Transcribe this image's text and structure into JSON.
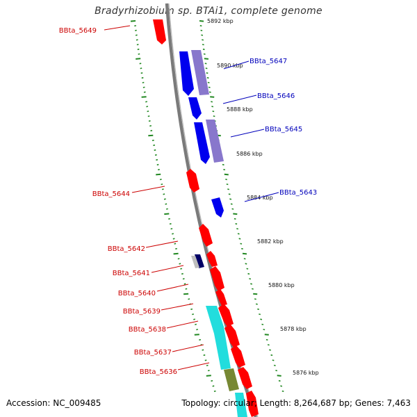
{
  "title": "Bradyrhizobium sp. BTAi1, complete genome",
  "footer": {
    "accession": "Accession: NC_009485",
    "summary": "Topology: circular; Length: 8,264,687 bp; Genes: 7,463"
  },
  "colors": {
    "backbone": "#808080",
    "scale_ticks": "#228822",
    "forward_label": "#cc0000",
    "reverse_label": "#0000bb",
    "red_feature": "#ff0000",
    "blue_feature": "#0000ee",
    "purple_feature": "#8877cc",
    "cyan_feature": "#22dddd",
    "olive_feature": "#778833",
    "navy_feature": "#000066"
  },
  "scale": {
    "unit": "kbp",
    "ticks": [
      "5892 kbp",
      "5890 kbp",
      "5888 kbp",
      "5886 kbp",
      "5884 kbp",
      "5882 kbp",
      "5880 kbp",
      "5878 kbp",
      "5876 kbp"
    ]
  },
  "genes": [
    {
      "label": "BBta_5649",
      "strand": "forward"
    },
    {
      "label": "BBta_5647",
      "strand": "reverse"
    },
    {
      "label": "BBta_5646",
      "strand": "reverse"
    },
    {
      "label": "BBta_5645",
      "strand": "reverse"
    },
    {
      "label": "BBta_5644",
      "strand": "forward"
    },
    {
      "label": "BBta_5643",
      "strand": "reverse"
    },
    {
      "label": "BBta_5642",
      "strand": "forward"
    },
    {
      "label": "BBta_5641",
      "strand": "forward"
    },
    {
      "label": "BBta_5640",
      "strand": "forward"
    },
    {
      "label": "BBta_5639",
      "strand": "forward"
    },
    {
      "label": "BBta_5638",
      "strand": "forward"
    },
    {
      "label": "BBta_5637",
      "strand": "forward"
    },
    {
      "label": "BBta_5636",
      "strand": "forward"
    }
  ]
}
